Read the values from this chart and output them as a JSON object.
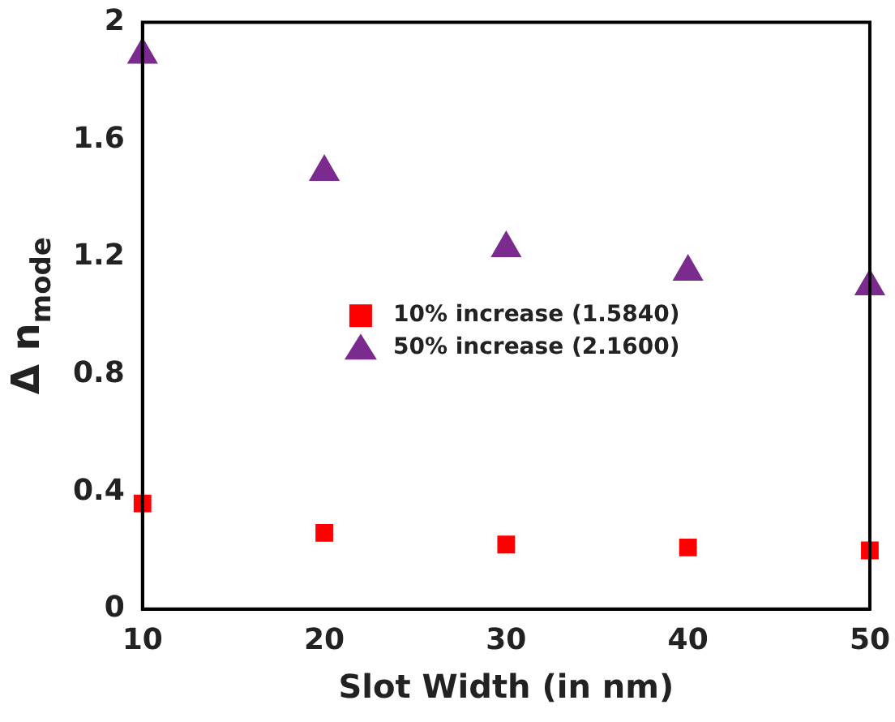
{
  "chart_data": {
    "type": "scatter",
    "xlabel": "Slot Width (in nm)",
    "ylabel": "Δ n$_{mode}$",
    "x": [
      10,
      20,
      30,
      40,
      50
    ],
    "xlim": [
      10,
      50
    ],
    "xticks": [
      10,
      20,
      30,
      40,
      50
    ],
    "ylim": [
      0,
      2
    ],
    "yticks": [
      0,
      0.4,
      0.8,
      1.2,
      1.6,
      2
    ],
    "grid": false,
    "legend": "center",
    "series": [
      {
        "name": "10% increase (1.5840)",
        "color": "#ff0000",
        "marker": "square",
        "values": [
          0.36,
          0.26,
          0.22,
          0.21,
          0.2
        ]
      },
      {
        "name": "50% increase (2.1600)",
        "color": "#7b2a8e",
        "marker": "triangle",
        "values": [
          1.89,
          1.49,
          1.23,
          1.15,
          1.1
        ]
      }
    ]
  }
}
